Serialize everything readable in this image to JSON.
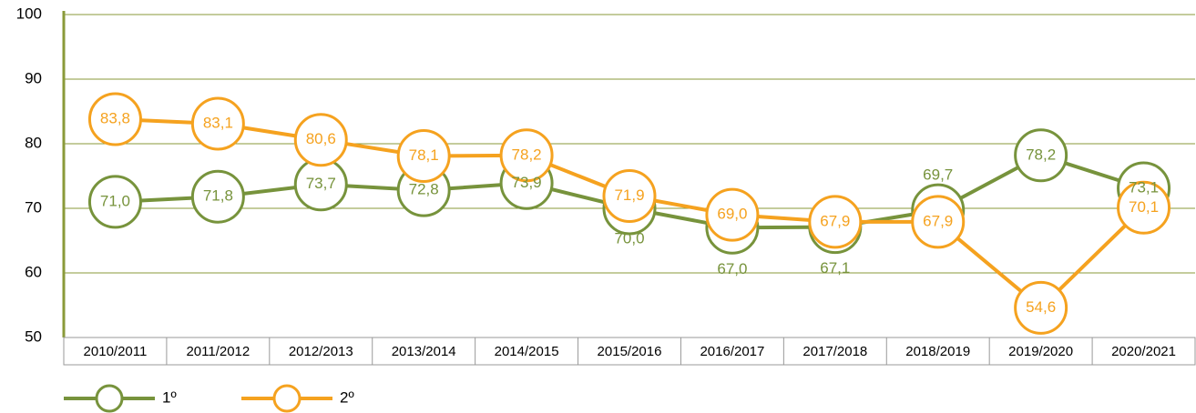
{
  "chart_data": {
    "type": "line",
    "categories": [
      "2010/2011",
      "2011/2012",
      "2012/2013",
      "2013/2014",
      "2014/2015",
      "2015/2016",
      "2016/2017",
      "2017/2018",
      "2018/2019",
      "2019/2020",
      "2020/2021"
    ],
    "series": [
      {
        "name": "1º",
        "color": "#77933c",
        "values": [
          71.0,
          71.8,
          73.7,
          72.8,
          73.9,
          70.0,
          67.0,
          67.1,
          69.7,
          78.2,
          73.1
        ],
        "value_labels": [
          "71,0",
          "71,8",
          "73,7",
          "72,8",
          "73,9",
          "70,0",
          "67,0",
          "67,1",
          "69,7",
          "78,2",
          "73,1"
        ]
      },
      {
        "name": "2º",
        "color": "#f5a21f",
        "values": [
          83.8,
          83.1,
          80.6,
          78.1,
          78.2,
          71.9,
          69.0,
          67.9,
          67.9,
          54.6,
          70.1
        ],
        "value_labels": [
          "83,8",
          "83,1",
          "80,6",
          "78,1",
          "78,2",
          "71,9",
          "69,0",
          "67,9",
          "67,9",
          "54,6",
          "70,1"
        ]
      }
    ],
    "ylim": [
      50,
      100
    ],
    "yticks": [
      50,
      60,
      70,
      80,
      90,
      100
    ],
    "grid": true,
    "legend": "bottom-left"
  }
}
